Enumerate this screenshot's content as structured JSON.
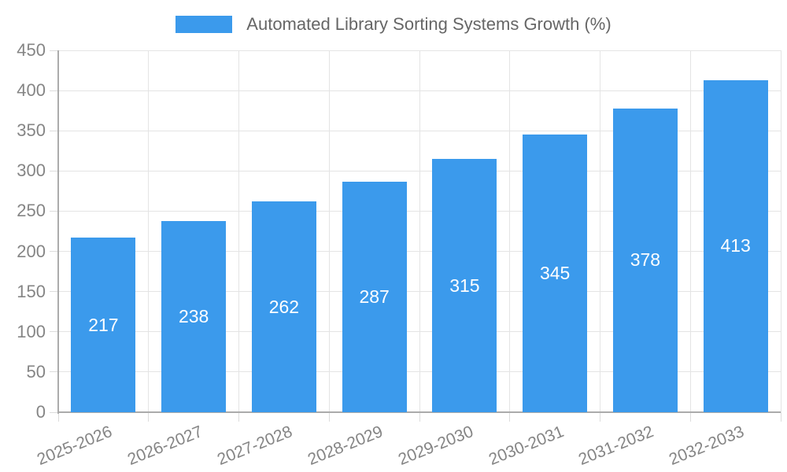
{
  "chart": {
    "legend": {
      "label": "Automated Library Sorting Systems Growth (%)"
    }
  },
  "chart_data": {
    "type": "bar",
    "categories": [
      "2025-2026",
      "2026-2027",
      "2027-2028",
      "2028-2029",
      "2029-2030",
      "2030-2031",
      "2031-2032",
      "2032-2033"
    ],
    "values": [
      217,
      238,
      262,
      287,
      315,
      345,
      378,
      413
    ],
    "title": "",
    "xlabel": "",
    "ylabel": "",
    "ylim": [
      0,
      450
    ],
    "yticks": [
      0,
      50,
      100,
      150,
      200,
      250,
      300,
      350,
      400,
      450
    ],
    "legend_entries": [
      "Automated Library Sorting Systems Growth (%)"
    ],
    "legend_position": "top-center",
    "grid": true,
    "bar_value_labels_inside": true,
    "colors": {
      "bar": "#3B9AEC",
      "bar_value_label": "#FFFFFF",
      "axis_text": "#858585",
      "legend_text": "#666666",
      "grid_line": "#E4E4E4",
      "tick_mark": "#DCDCDC",
      "axis_border": "#ABABAB",
      "background": "#FFFFFF"
    }
  }
}
